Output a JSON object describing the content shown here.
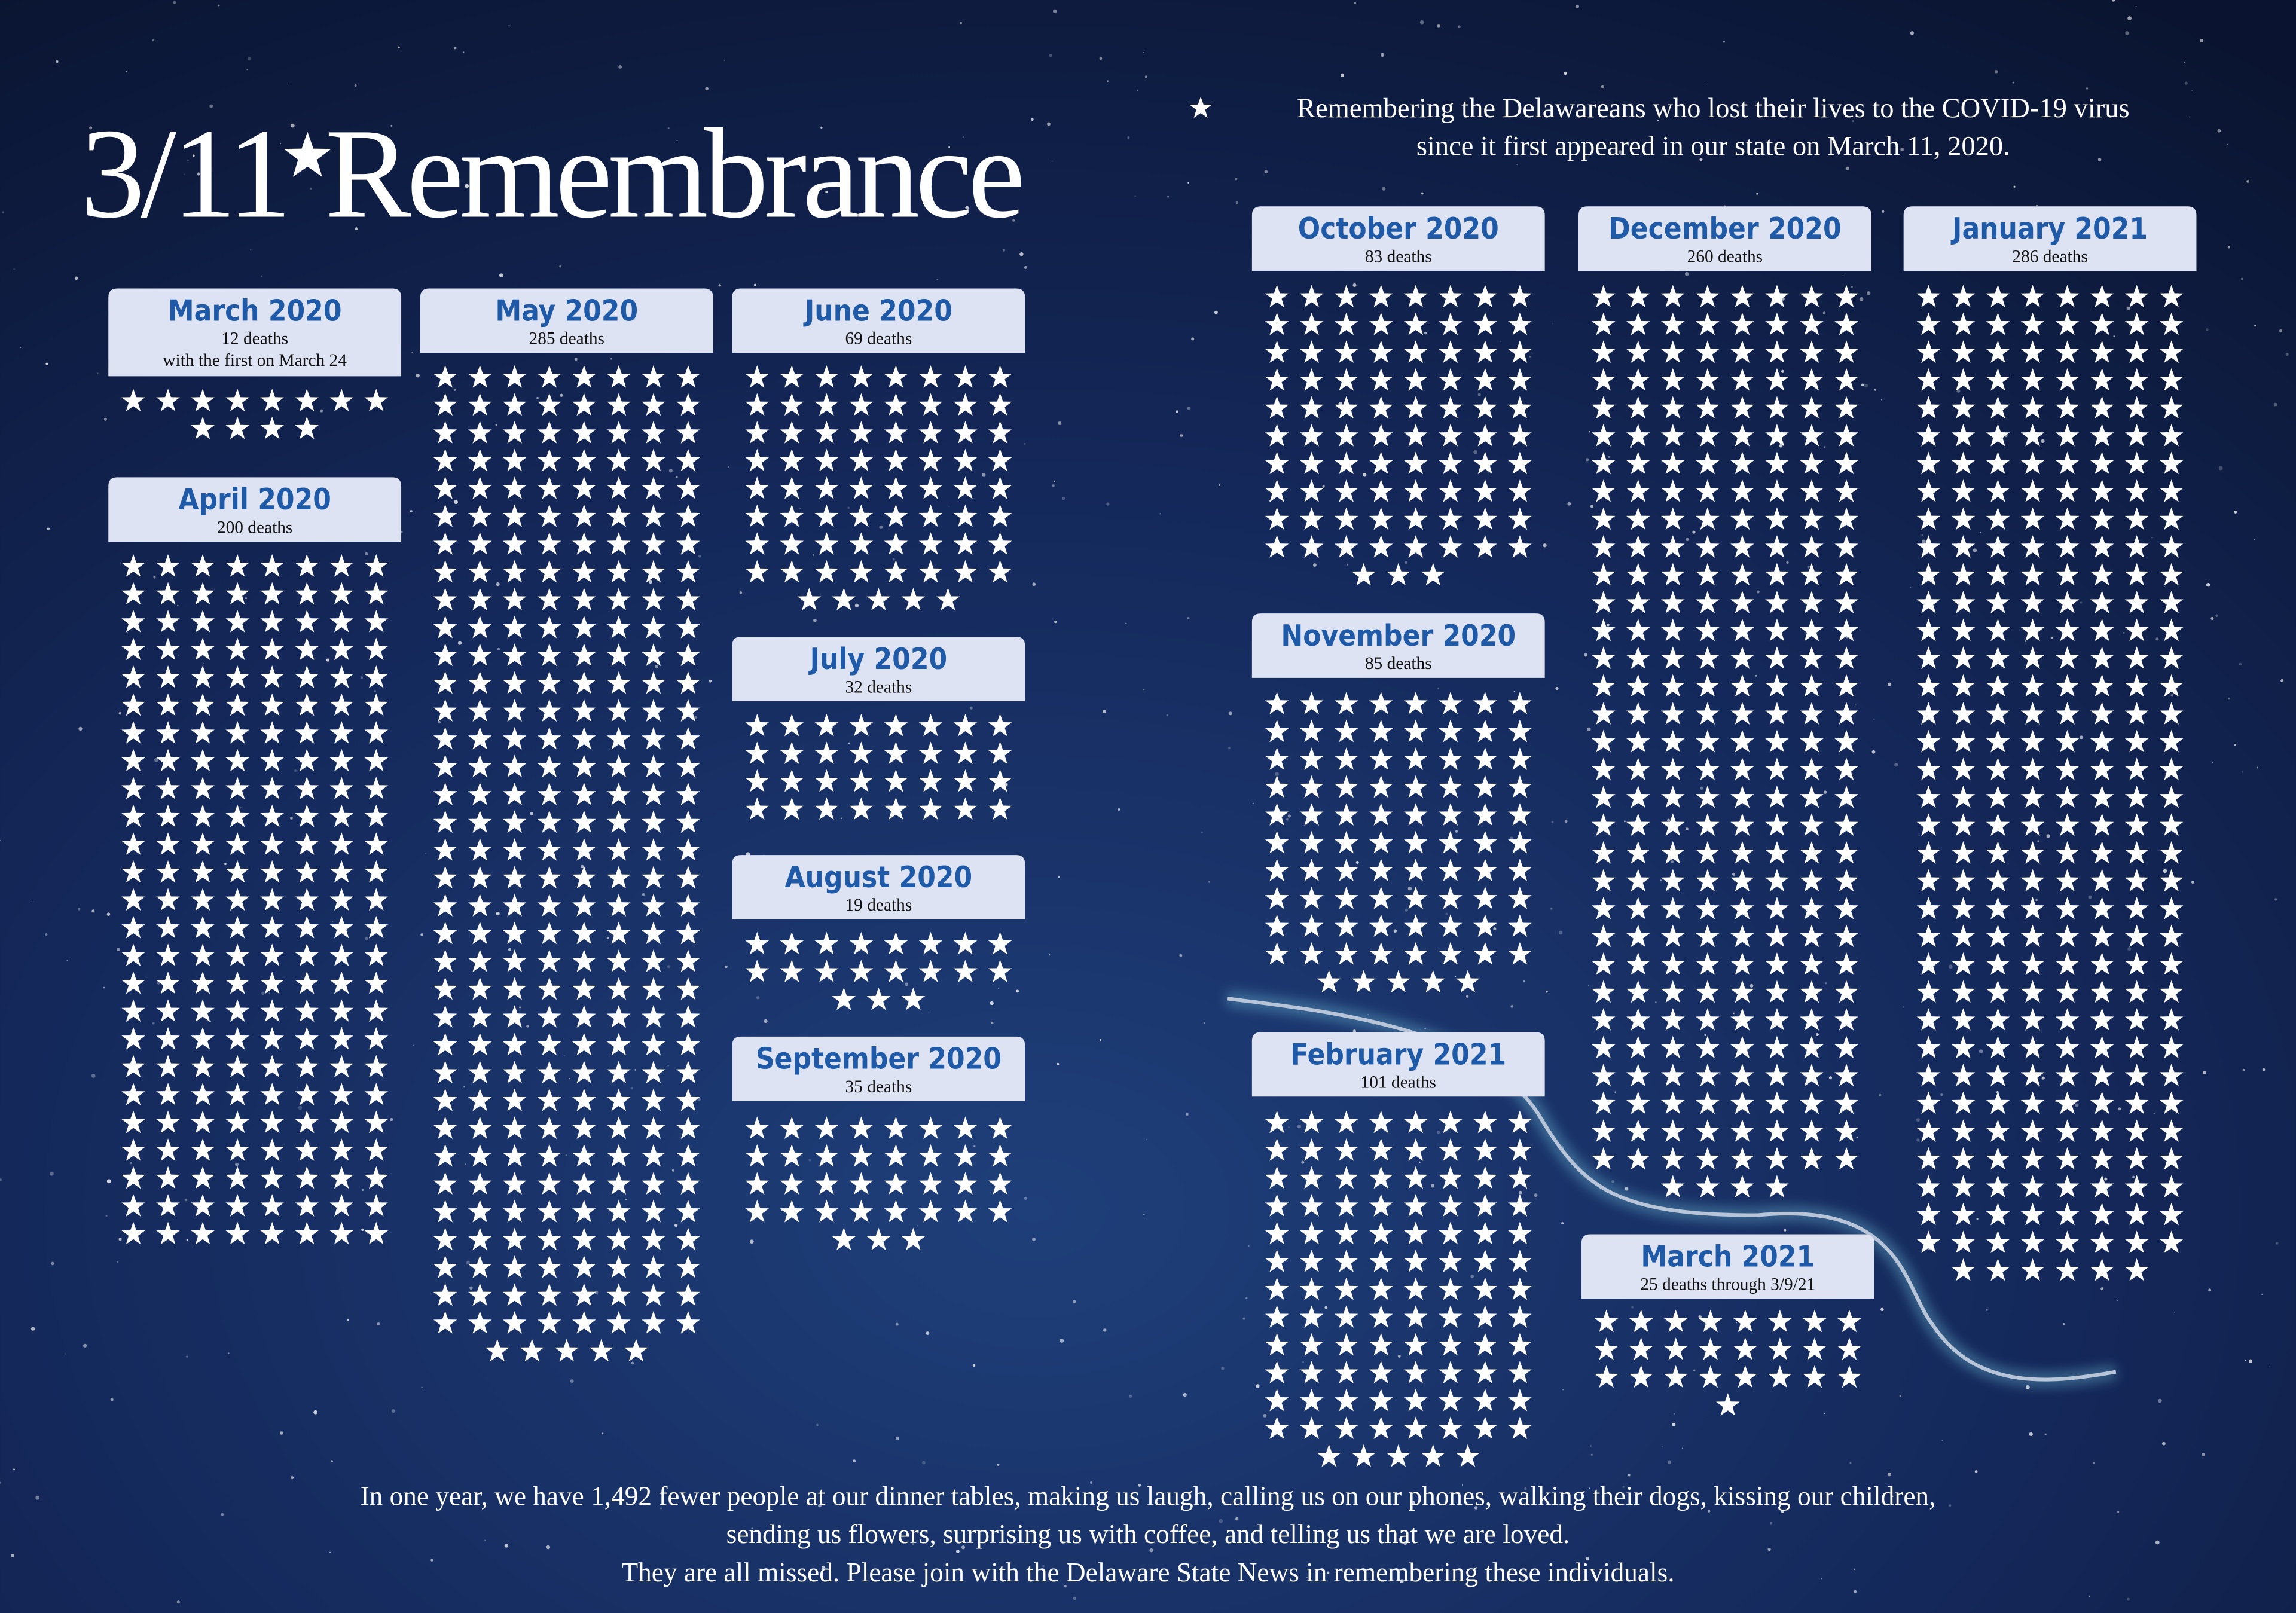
{
  "header": {
    "title_date": "3/11",
    "title_word": "Remembrance",
    "subtitle": [
      "Remembering the Delawareans who lost their lives to the COVID-19 virus",
      "since it first appeared in our state on March 11, 2020."
    ]
  },
  "panels": [
    {
      "month": "March 2020",
      "value": 12,
      "value_label": "12 deaths",
      "note": "with the first on March 24"
    },
    {
      "month": "April 2020",
      "value": 200,
      "value_label": "200 deaths"
    },
    {
      "month": "May 2020",
      "value": 285,
      "value_label": "285 deaths"
    },
    {
      "month": "June 2020",
      "value": 69,
      "value_label": "69 deaths"
    },
    {
      "month": "July 2020",
      "value": 32,
      "value_label": "32 deaths"
    },
    {
      "month": "August 2020",
      "value": 19,
      "value_label": "19 deaths"
    },
    {
      "month": "September 2020",
      "value": 35,
      "value_label": "35 deaths"
    },
    {
      "month": "October 2020",
      "value": 83,
      "value_label": "83 deaths"
    },
    {
      "month": "November 2020",
      "value": 85,
      "value_label": "85 deaths"
    },
    {
      "month": "December 2020",
      "value": 260,
      "value_label": "260 deaths"
    },
    {
      "month": "January 2021",
      "value": 286,
      "value_label": "286 deaths"
    },
    {
      "month": "February 2021",
      "value": 101,
      "value_label": "101 deaths"
    },
    {
      "month": "March 2021",
      "value": 25,
      "value_label": "25 deaths through 3/9/21"
    }
  ],
  "footer": [
    "In one year, we have 1,492 fewer people at our dinner tables, making us laugh, calling us on our phones, walking their dogs, kissing our children,",
    "sending us flowers, surprising us with coffee, and telling us that we are loved.",
    "They are all missed. Please join with the Delaware State News in remembering these individuals."
  ]
}
